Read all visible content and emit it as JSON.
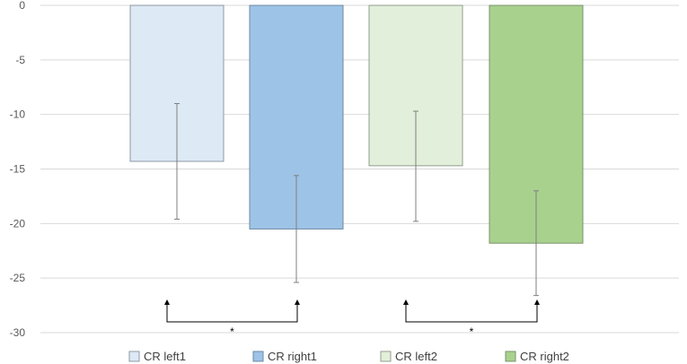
{
  "chart_data": {
    "type": "bar",
    "categories": [
      "CR left1",
      "CR right1",
      "CR left2",
      "CR right2"
    ],
    "values": [
      -14.3,
      -20.5,
      -14.7,
      -21.8
    ],
    "error_low": [
      -19.6,
      -25.4,
      -19.8,
      -26.6
    ],
    "error_high": [
      -9.0,
      -15.6,
      -9.7,
      -17.0
    ],
    "colors": [
      "#dde9f5",
      "#9dc3e6",
      "#e2efda",
      "#a9d18e"
    ],
    "edge_colors": [
      "#8d98a4",
      "#6d8aa6",
      "#939c8e",
      "#77946a"
    ],
    "ylim": [
      -30,
      0
    ],
    "yticks": [
      0,
      -5,
      -10,
      -15,
      -20,
      -25,
      -30
    ],
    "grid": true,
    "legend_position": "bottom",
    "significance": [
      {
        "from": 0,
        "to": 1,
        "label": "*"
      },
      {
        "from": 2,
        "to": 3,
        "label": "*"
      }
    ]
  }
}
